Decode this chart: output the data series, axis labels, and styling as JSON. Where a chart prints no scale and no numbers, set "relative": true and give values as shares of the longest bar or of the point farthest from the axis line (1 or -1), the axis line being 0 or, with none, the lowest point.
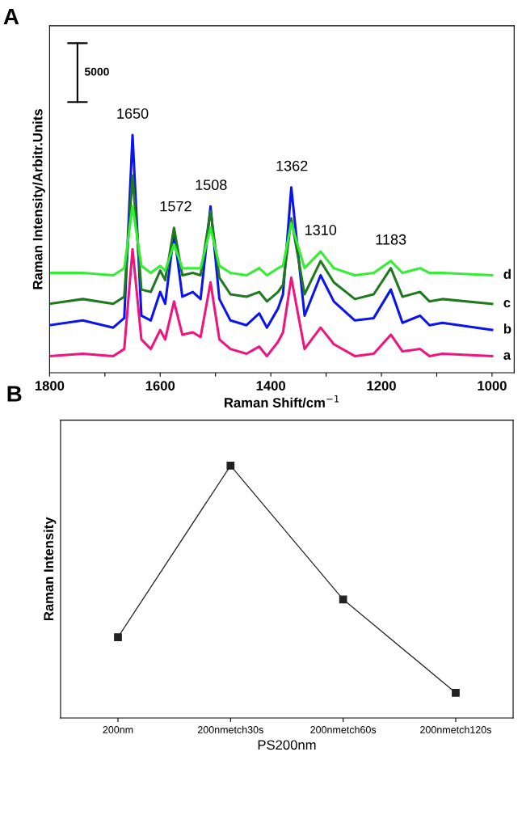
{
  "chart_data": [
    {
      "type": "line",
      "title": "A",
      "xlabel": "Raman Shift/cm$^{−1}$",
      "ylabel": "Raman Intensity/Arbitr.Units",
      "relative": true,
      "x": [
        1800,
        1740,
        1685,
        1665,
        1650,
        1634,
        1617,
        1600,
        1591,
        1575,
        1560,
        1541,
        1527,
        1509,
        1493,
        1473,
        1444,
        1421,
        1407,
        1387,
        1378,
        1363,
        1339,
        1310,
        1286,
        1248,
        1214,
        1183,
        1162,
        1130,
        1113,
        1090,
        1000
      ],
      "xlim": [
        1800,
        960
      ],
      "xticks": [
        1800,
        {
          "value": 1700,
          "label": null
        },
        1600,
        {
          "value": 1500,
          "label": null
        },
        1400,
        {
          "value": 1300,
          "label": null
        },
        1200,
        {
          "value": 1100,
          "label": null
        },
        1000
      ],
      "series": [
        {
          "name": "a",
          "color": "#f0147f",
          "values": [
            0.07,
            0.08,
            0.07,
            0.1,
            0.52,
            0.14,
            0.1,
            0.18,
            0.14,
            0.3,
            0.16,
            0.17,
            0.15,
            0.38,
            0.14,
            0.1,
            0.08,
            0.11,
            0.07,
            0.13,
            0.17,
            0.4,
            0.1,
            0.19,
            0.12,
            0.07,
            0.08,
            0.16,
            0.09,
            0.1,
            0.07,
            0.08,
            0.07
          ]
        },
        {
          "name": "b",
          "color": "#0a14f0",
          "values": [
            0.2,
            0.22,
            0.19,
            0.23,
            1.0,
            0.24,
            0.22,
            0.34,
            0.29,
            0.59,
            0.32,
            0.34,
            0.31,
            0.7,
            0.31,
            0.22,
            0.2,
            0.25,
            0.19,
            0.27,
            0.33,
            0.78,
            0.24,
            0.41,
            0.3,
            0.22,
            0.23,
            0.35,
            0.21,
            0.24,
            0.2,
            0.21,
            0.18
          ]
        },
        {
          "name": "c",
          "color": "#1f7a1f",
          "values": [
            0.29,
            0.31,
            0.29,
            0.32,
            0.83,
            0.35,
            0.34,
            0.43,
            0.39,
            0.61,
            0.41,
            0.42,
            0.41,
            0.68,
            0.4,
            0.33,
            0.32,
            0.34,
            0.3,
            0.34,
            0.37,
            0.65,
            0.33,
            0.47,
            0.38,
            0.31,
            0.33,
            0.44,
            0.32,
            0.34,
            0.3,
            0.31,
            0.29
          ]
        },
        {
          "name": "d",
          "color": "#33ee33",
          "values": [
            0.42,
            0.42,
            0.41,
            0.44,
            0.7,
            0.45,
            0.42,
            0.45,
            0.43,
            0.54,
            0.44,
            0.44,
            0.44,
            0.61,
            0.45,
            0.42,
            0.41,
            0.44,
            0.41,
            0.44,
            0.45,
            0.63,
            0.44,
            0.51,
            0.44,
            0.41,
            0.42,
            0.47,
            0.42,
            0.44,
            0.42,
            0.42,
            0.41
          ]
        }
      ],
      "annotations": [
        {
          "text": "1650",
          "x": 1650,
          "y": 1.0
        },
        {
          "text": "1572",
          "x": 1572,
          "y": 0.61
        },
        {
          "text": "1508",
          "x": 1508,
          "y": 0.7
        },
        {
          "text": "1362",
          "x": 1362,
          "y": 0.78
        },
        {
          "text": "1310",
          "x": 1310,
          "y": 0.51
        },
        {
          "text": "1183",
          "x": 1183,
          "y": 0.47
        },
        "5000"
      ],
      "legend": false,
      "grid": false,
      "line_style": "solid",
      "marker": "none",
      "tick_labels": "x"
    },
    {
      "type": "line",
      "title": "B",
      "xlabel": "PS200nm",
      "ylabel": "Raman Intensity",
      "relative": true,
      "categories": [
        "200nm",
        "200nmetch30s",
        "200nmetch60s",
        "200nmetch120s"
      ],
      "values": [
        0.32,
        1.0,
        0.47,
        0.1
      ],
      "color": "#222222",
      "legend": false,
      "grid": false,
      "line_style": "solid",
      "marker": "square",
      "tick_labels": "x"
    }
  ]
}
